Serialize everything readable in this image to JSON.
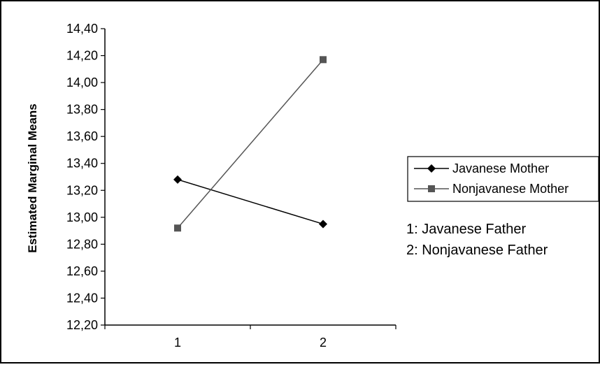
{
  "chart_data": {
    "type": "line",
    "title": "",
    "xlabel": "",
    "ylabel": "Estimated Marginal Means",
    "categories": [
      "1",
      "2"
    ],
    "ylim": [
      12.2,
      14.4
    ],
    "yticks": [
      "12,20",
      "12,40",
      "12,60",
      "12,80",
      "13,00",
      "13,20",
      "13,40",
      "13,60",
      "13,80",
      "14,00",
      "14,20",
      "14,40"
    ],
    "grid": false,
    "legend_position": "right",
    "series": [
      {
        "name": "Javanese Mother",
        "values": [
          13.28,
          12.95
        ],
        "marker": "diamond",
        "color": "#000000"
      },
      {
        "name": "Nonjavanese Mother",
        "values": [
          12.92,
          14.17
        ],
        "marker": "square",
        "color": "#555555"
      }
    ],
    "annotations": [
      "1: Javanese Father",
      "2: Nonjavanese Father"
    ]
  }
}
